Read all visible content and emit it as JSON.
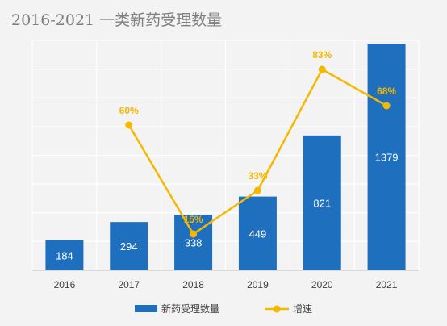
{
  "chart_data": {
    "type": "bar",
    "title": "2016-2021 一类新药受理数量",
    "categories": [
      "2016",
      "2017",
      "2018",
      "2019",
      "2020",
      "2021"
    ],
    "series": [
      {
        "name": "新药受理数量",
        "kind": "bar",
        "color": "#1f6fbf",
        "values": [
          184,
          294,
          338,
          449,
          821,
          1379
        ]
      },
      {
        "name": "增速",
        "kind": "line",
        "color": "#f5b800",
        "values": [
          null,
          60,
          15,
          33,
          83,
          68
        ],
        "labels": [
          "",
          "60%",
          "15%",
          "33%",
          "83%",
          "68%"
        ]
      }
    ],
    "ylim": [
      0,
      1400
    ],
    "secondary_ylim": [
      0,
      95
    ],
    "grid": true,
    "legend_position": "bottom"
  }
}
